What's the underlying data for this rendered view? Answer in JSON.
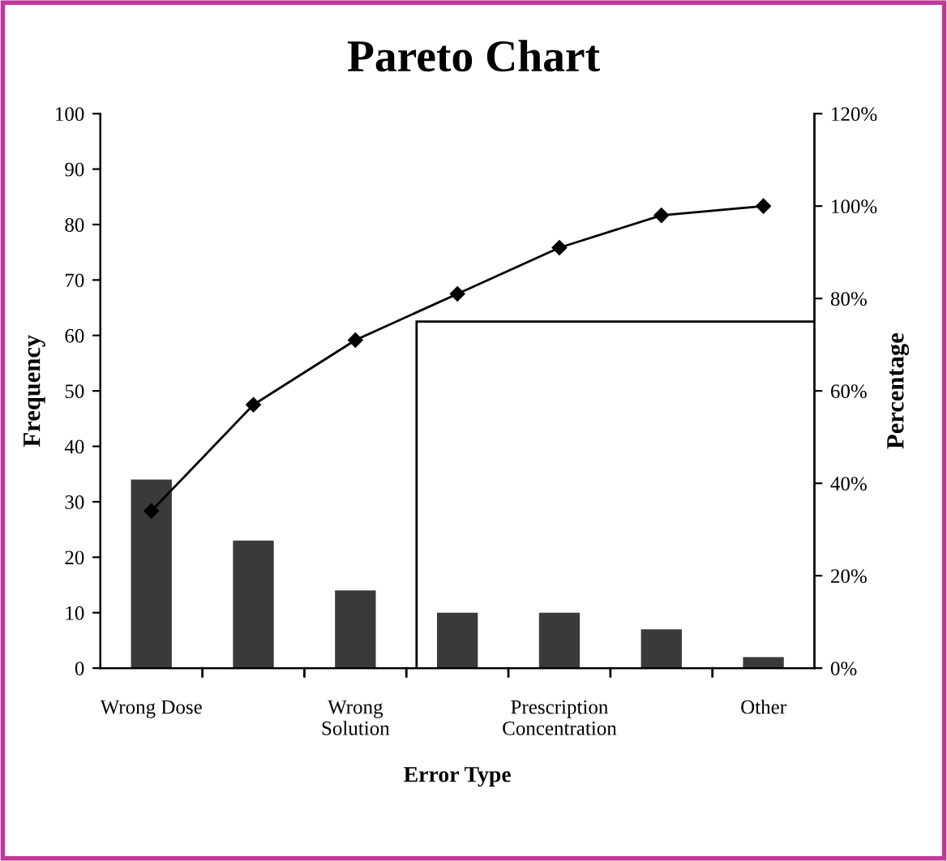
{
  "chart_data": {
    "type": "bar",
    "title": "Pareto Chart",
    "xlabel": "Error Type",
    "ylabel": "Frequency",
    "y2label": "Percentage",
    "categories": [
      "Wrong Dose",
      null,
      "Wrong\nSolution",
      null,
      "Prescription\nConcentration",
      null,
      "Other"
    ],
    "series": [
      {
        "color": "#3a3a3a",
        "values": [
          34,
          23,
          14,
          10,
          10,
          7,
          2
        ]
      },
      {
        "type": "line",
        "axis": "y2",
        "color": "#000000",
        "marker": "diamond",
        "values": [
          34,
          57,
          71,
          81,
          91,
          98,
          100
        ]
      }
    ],
    "ylim": [
      0,
      100
    ],
    "yticks": [
      0,
      10,
      20,
      30,
      40,
      50,
      60,
      70,
      80,
      90,
      100
    ],
    "y2lim": [
      0,
      120
    ],
    "y2ticks": [
      {
        "value": 0,
        "label": "0%"
      },
      {
        "value": 20,
        "label": "20%"
      },
      {
        "value": 40,
        "label": "40%"
      },
      {
        "value": 60,
        "label": "60%"
      },
      {
        "value": 80,
        "label": "80%"
      },
      {
        "value": 100,
        "label": "100%"
      },
      {
        "value": 120,
        "label": "120%"
      }
    ],
    "ref_lines": [
      {
        "axis": "y2",
        "value": 75,
        "color": "#000000"
      }
    ],
    "grid": false,
    "legend": false
  }
}
